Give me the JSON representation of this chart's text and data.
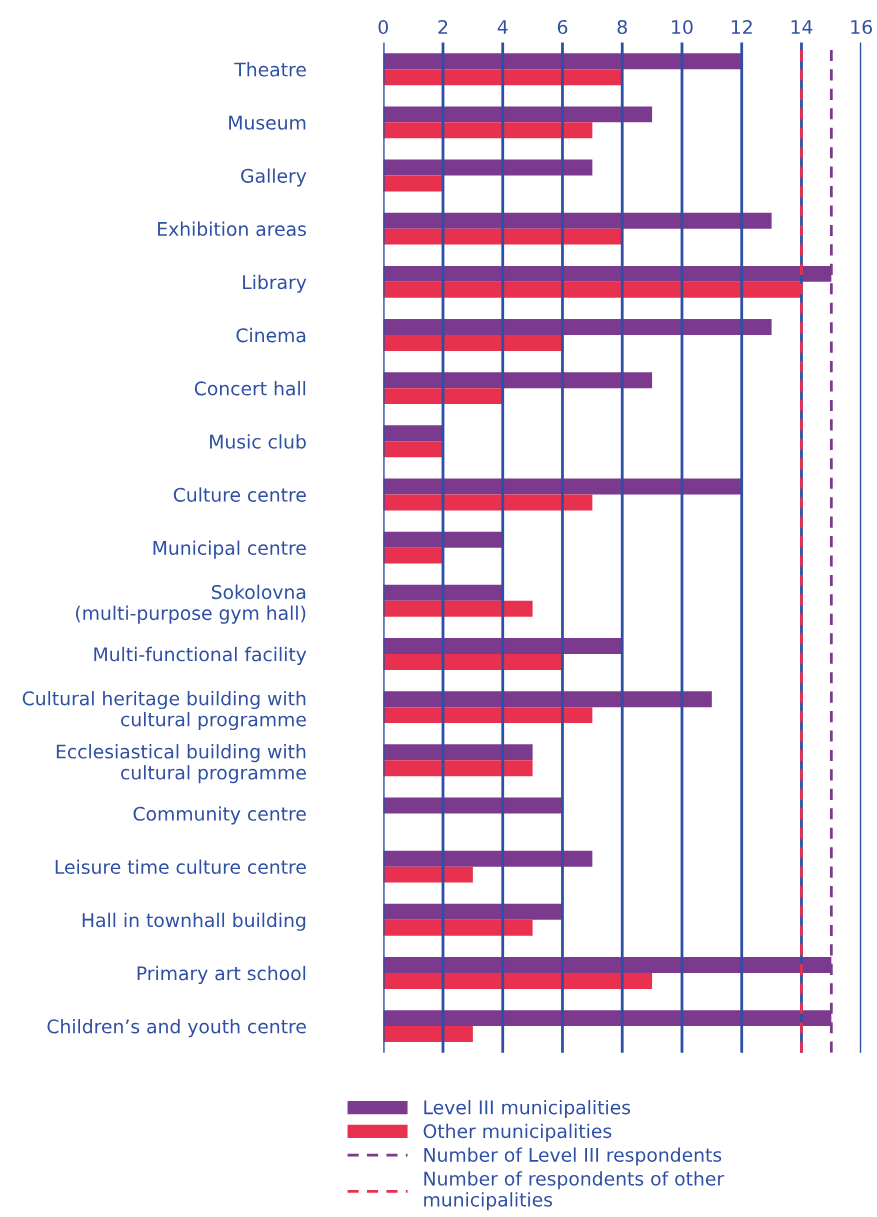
{
  "chart_data": {
    "type": "bar",
    "orientation": "horizontal",
    "categories": [
      "Theatre",
      "Museum",
      "Gallery",
      "Exhibition areas",
      "Library",
      "Cinema",
      "Concert hall",
      "Music club",
      "Culture centre",
      "Municipal centre",
      "Sokolovna\n(multi-purpose gym hall)",
      "Multi-functional facility",
      "Cultural heritage building with\ncultural programme",
      "Ecclesiastical building with\ncultural programme",
      "Community centre",
      "Leisure time culture centre",
      "Hall in townhall building",
      "Primary art school",
      "Children’s and youth centre"
    ],
    "series": [
      {
        "name": "Level III municipalities",
        "color": "#7b3a8e",
        "values": [
          12,
          9,
          7,
          13,
          15,
          13,
          9,
          2,
          12,
          4,
          4,
          8,
          11,
          5,
          6,
          7,
          6,
          15,
          15
        ]
      },
      {
        "name": "Other municipalities",
        "color": "#e8304f",
        "values": [
          8,
          7,
          2,
          8,
          14,
          6,
          4,
          2,
          7,
          2,
          5,
          6,
          7,
          5,
          0,
          3,
          5,
          9,
          3
        ]
      }
    ],
    "xlim": [
      0,
      16
    ],
    "xticks": [
      0,
      2,
      4,
      6,
      8,
      10,
      12,
      14,
      16
    ],
    "grid": "x",
    "ref_lines": [
      {
        "axis": "x",
        "value": 15,
        "label": "Number of Level III respondents",
        "color": "#7b3a8e",
        "line_style": "dashed"
      },
      {
        "axis": "x",
        "value": 14,
        "label": "Number of respondents of other\nmunicipalities",
        "color": "#e8304f",
        "line_style": "dashed"
      }
    ],
    "legend": "bottom"
  }
}
